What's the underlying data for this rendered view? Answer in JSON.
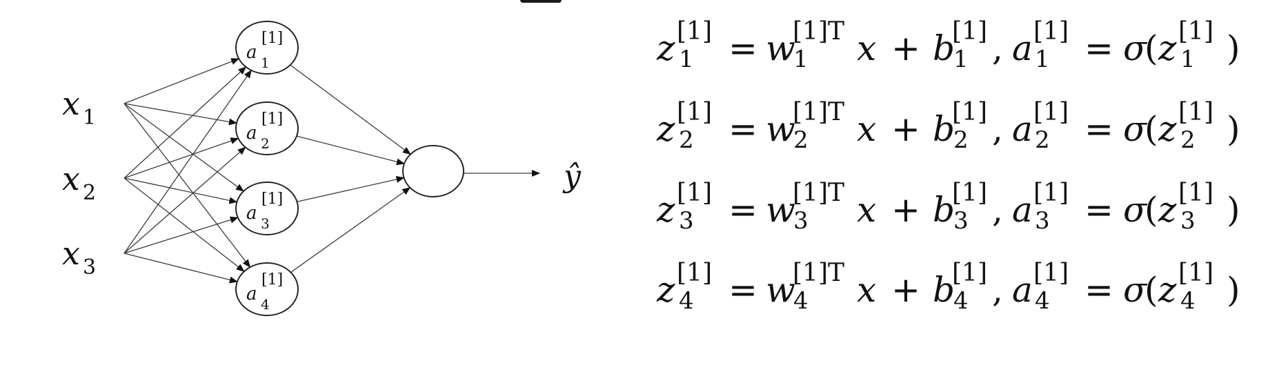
{
  "diagram": {
    "inputs": [
      {
        "base": "x",
        "sub": "1"
      },
      {
        "base": "x",
        "sub": "2"
      },
      {
        "base": "x",
        "sub": "3"
      }
    ],
    "hidden": [
      {
        "base": "a",
        "sup": "[1]",
        "sub": "1"
      },
      {
        "base": "a",
        "sup": "[1]",
        "sub": "2"
      },
      {
        "base": "a",
        "sup": "[1]",
        "sub": "3"
      },
      {
        "base": "a",
        "sup": "[1]",
        "sub": "4"
      }
    ],
    "output_label": "ŷ"
  },
  "equations": [
    {
      "i": "1"
    },
    {
      "i": "2"
    },
    {
      "i": "3"
    },
    {
      "i": "4"
    }
  ],
  "eq_tokens": {
    "z": "z",
    "w": "w",
    "b": "b",
    "a": "a",
    "x": "x",
    "layer": "[1]",
    "layer_T": "[1]T",
    "equals": "=",
    "plus": "+",
    "comma": ",",
    "sigma": "σ",
    "lparen": "(",
    "rparen": ")"
  },
  "colors": {
    "stroke": "#222222",
    "text": "#111111"
  }
}
